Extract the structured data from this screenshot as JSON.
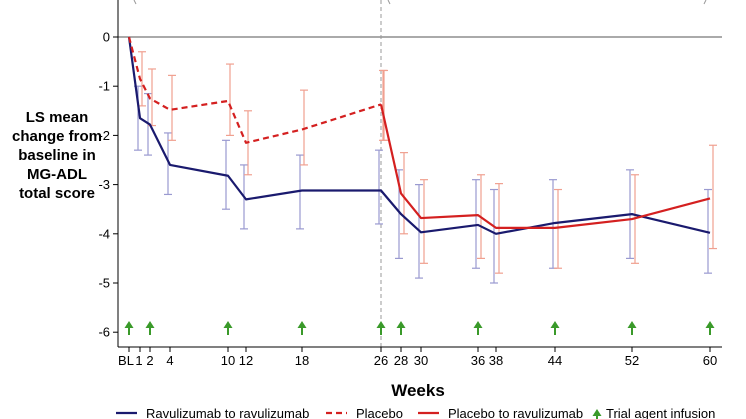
{
  "chart_data": {
    "type": "line",
    "xlabel": "Weeks",
    "ylabel_lines": [
      "LS mean",
      "change from",
      "baseline in",
      "MG-ADL",
      "total score"
    ],
    "ylim": [
      -6.6,
      0.6
    ],
    "yticks": [
      "0",
      "-1",
      "-2",
      "-3",
      "-4",
      "-5",
      "-6"
    ],
    "ytick_values": [
      0,
      -1,
      -2,
      -3,
      -4,
      -5,
      -6
    ],
    "x_ticks": [
      {
        "label": "BL",
        "week": 0
      },
      {
        "label": "1",
        "week": 1
      },
      {
        "label": "2",
        "week": 2
      },
      {
        "label": "4",
        "week": 4
      },
      {
        "label": "10",
        "week": 10
      },
      {
        "label": "12",
        "week": 12
      },
      {
        "label": "18",
        "week": 18
      },
      {
        "label": "26",
        "week": 26
      },
      {
        "label": "28",
        "week": 28
      },
      {
        "label": "30",
        "week": 30
      },
      {
        "label": "36",
        "week": 36
      },
      {
        "label": "38",
        "week": 38
      },
      {
        "label": "44",
        "week": 44
      },
      {
        "label": "52",
        "week": 52
      },
      {
        "label": "60",
        "week": 60
      }
    ],
    "vertical_reference_week": 26,
    "horizontal_reference_value": 0,
    "series": [
      {
        "name": "Ravulizumab to ravulizumab",
        "color": "#1a1a6e",
        "style": "solid",
        "error_color": "#9a9ad0",
        "x": [
          0,
          1,
          2,
          4,
          10,
          12,
          18,
          26,
          28,
          30,
          36,
          38,
          44,
          52,
          60
        ],
        "y": [
          0,
          -1.65,
          -1.78,
          -2.6,
          -2.82,
          -3.3,
          -3.12,
          -3.12,
          -3.6,
          -3.97,
          -3.82,
          -4.0,
          -3.78,
          -3.6,
          -3.98
        ],
        "err_low": [
          0,
          -2.3,
          -2.4,
          -3.2,
          -3.5,
          -3.9,
          -3.9,
          -3.8,
          -4.5,
          -4.9,
          -4.7,
          -5.0,
          -4.7,
          -4.5,
          -4.8
        ],
        "err_high": [
          0,
          -1.0,
          -1.15,
          -1.95,
          -2.1,
          -2.6,
          -2.4,
          -2.3,
          -2.7,
          -3.0,
          -2.9,
          -3.1,
          -2.9,
          -2.7,
          -3.1
        ]
      },
      {
        "name": "Placebo",
        "color": "#d42020",
        "style": "dashed",
        "error_color": "#f0a090",
        "x": [
          0,
          1,
          2,
          4,
          10,
          12,
          18,
          26
        ],
        "y": [
          0,
          -0.85,
          -1.25,
          -1.48,
          -1.3,
          -2.15,
          -1.88,
          -1.37
        ],
        "err_low": [
          0,
          -1.4,
          -1.8,
          -2.1,
          -2.0,
          -2.8,
          -2.6,
          -2.1
        ],
        "err_high": [
          0,
          -0.3,
          -0.65,
          -0.78,
          -0.55,
          -1.5,
          -1.08,
          -0.68
        ]
      },
      {
        "name": "Placebo to ravulizumab",
        "color": "#d42020",
        "style": "solid",
        "error_color": "#f0a090",
        "x": [
          26,
          28,
          30,
          36,
          38,
          44,
          52,
          60
        ],
        "y": [
          -1.37,
          -3.18,
          -3.68,
          -3.62,
          -3.88,
          -3.88,
          -3.7,
          -3.28
        ],
        "err_low": [
          -2.1,
          -4.0,
          -4.6,
          -4.5,
          -4.8,
          -4.7,
          -4.6,
          -4.3
        ],
        "err_high": [
          -0.68,
          -2.35,
          -2.9,
          -2.8,
          -2.98,
          -3.1,
          -2.8,
          -2.2
        ]
      }
    ],
    "infusion_weeks": [
      0,
      2,
      10,
      18,
      26,
      28,
      36,
      44,
      52,
      60
    ],
    "infusion_color": "#3a9a2a",
    "legend": {
      "position": "bottom",
      "items": [
        "Ravulizumab to ravulizumab",
        "Placebo",
        "Placebo to ravulizumab",
        "Trial agent infusion"
      ]
    }
  }
}
